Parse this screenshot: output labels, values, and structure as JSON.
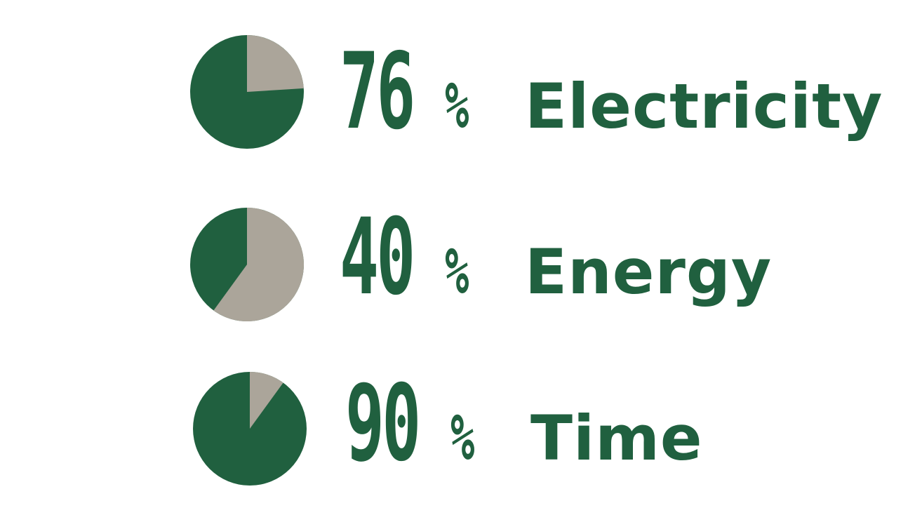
{
  "colors": {
    "primary": "#20603f",
    "secondary": "#aba59a",
    "background": "#ffffff"
  },
  "chart_data": [
    {
      "type": "pie",
      "label": "Electricity",
      "percent_text": "76",
      "percent_sign": "%",
      "values": [
        76,
        24
      ],
      "slices": [
        {
          "name": "",
          "value": 76,
          "color": "#20603f"
        },
        {
          "name": "",
          "value": 24,
          "color": "#aba59a"
        }
      ]
    },
    {
      "type": "pie",
      "label": "Energy",
      "percent_text": "40",
      "percent_sign": "%",
      "values": [
        40,
        60
      ],
      "slices": [
        {
          "name": "",
          "value": 40,
          "color": "#20603f"
        },
        {
          "name": "",
          "value": 60,
          "color": "#aba59a"
        }
      ]
    },
    {
      "type": "pie",
      "label": "Time",
      "percent_text": "90",
      "percent_sign": "%",
      "values": [
        90,
        10
      ],
      "slices": [
        {
          "name": "",
          "value": 90,
          "color": "#20603f"
        },
        {
          "name": "",
          "value": 10,
          "color": "#aba59a"
        }
      ]
    }
  ]
}
